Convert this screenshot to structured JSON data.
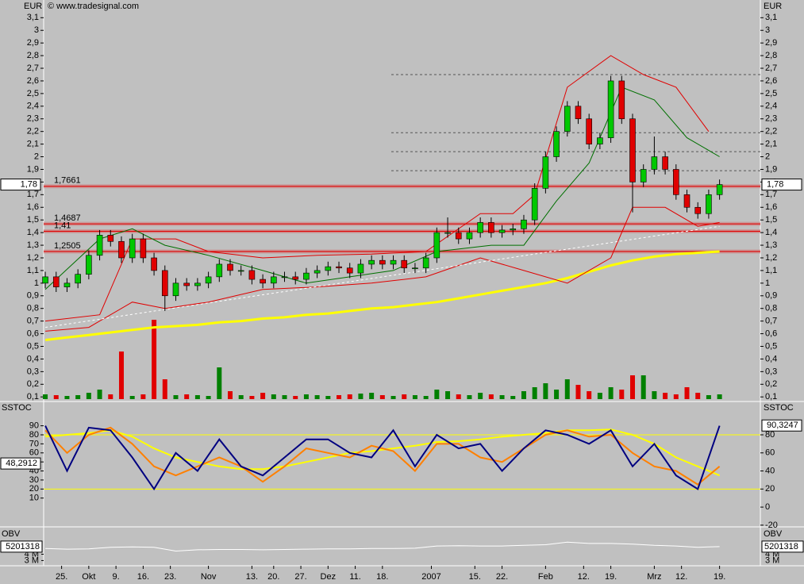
{
  "chart_data": {
    "type": "candlestick",
    "copyright": "© www.tradesignal.com",
    "xlim": [
      -0.3,
      131.5
    ],
    "xticks": [
      {
        "value": 3,
        "label": "25."
      },
      {
        "value": 8,
        "label": "Okt"
      },
      {
        "value": 13,
        "label": "9."
      },
      {
        "value": 18,
        "label": "16."
      },
      {
        "value": 23,
        "label": "23."
      },
      {
        "value": 30,
        "label": "Nov"
      },
      {
        "value": 38,
        "label": "13."
      },
      {
        "value": 42,
        "label": "20."
      },
      {
        "value": 47,
        "label": "27."
      },
      {
        "value": 52,
        "label": "Dez"
      },
      {
        "value": 57,
        "label": "11."
      },
      {
        "value": 62,
        "label": "18."
      },
      {
        "value": 71,
        "label": "2007"
      },
      {
        "value": 79,
        "label": "15."
      },
      {
        "value": 84,
        "label": "22."
      },
      {
        "value": 92,
        "label": "Feb"
      },
      {
        "value": 99,
        "label": "12."
      },
      {
        "value": 104,
        "label": "19."
      },
      {
        "value": 112,
        "label": "Mrz"
      },
      {
        "value": 117,
        "label": "12."
      },
      {
        "value": 124,
        "label": "19."
      }
    ],
    "price_panel": {
      "axis_label": "EUR",
      "ylim": [
        0.07,
        3.24
      ],
      "yticks": [
        {
          "value": 0.1,
          "label": "0,1"
        },
        {
          "value": 0.2,
          "label": "0,2"
        },
        {
          "value": 0.3,
          "label": "0,3"
        },
        {
          "value": 0.4,
          "label": "0,4"
        },
        {
          "value": 0.5,
          "label": "0,5"
        },
        {
          "value": 0.6,
          "label": "0,6"
        },
        {
          "value": 0.7,
          "label": "0,7"
        },
        {
          "value": 0.8,
          "label": "0,8"
        },
        {
          "value": 0.9,
          "label": "0,9"
        },
        1,
        {
          "value": 1.1,
          "label": "1,1"
        },
        {
          "value": 1.2,
          "label": "1,2"
        },
        {
          "value": 1.3,
          "label": "1,3"
        },
        {
          "value": 1.4,
          "label": "1,4"
        },
        {
          "value": 1.5,
          "label": "1,5"
        },
        {
          "value": 1.6,
          "label": "1,6"
        },
        {
          "value": 1.7,
          "label": "1,7"
        },
        {
          "value": 1.8,
          "label": "1,8"
        },
        {
          "value": 1.9,
          "label": "1,9"
        },
        2,
        {
          "value": 2.1,
          "label": "2,1"
        },
        {
          "value": 2.2,
          "label": "2,2"
        },
        {
          "value": 2.3,
          "label": "2,3"
        },
        {
          "value": 2.4,
          "label": "2,4"
        },
        {
          "value": 2.5,
          "label": "2,5"
        },
        {
          "value": 2.6,
          "label": "2,6"
        },
        {
          "value": 2.7,
          "label": "2,7"
        },
        {
          "value": 2.8,
          "label": "2,8"
        },
        {
          "value": 2.9,
          "label": "2,9"
        },
        3,
        {
          "value": 3.1,
          "label": "3,1"
        }
      ],
      "up_color": "#00c800",
      "down_color": "#e00000",
      "x": [
        0,
        2,
        4,
        6,
        8,
        10,
        12,
        14,
        16,
        18,
        20,
        22,
        24,
        26,
        28,
        30,
        32,
        34,
        36,
        38,
        40,
        42,
        44,
        46,
        48,
        50,
        52,
        54,
        56,
        58,
        60,
        62,
        64,
        66,
        68,
        70,
        72,
        74,
        76,
        78,
        80,
        82,
        84,
        86,
        88,
        90,
        92,
        94,
        96,
        98,
        100,
        102,
        104,
        106,
        108,
        110,
        112,
        114,
        116,
        118,
        120,
        122,
        124
      ],
      "open": [
        1.0,
        1.05,
        0.97,
        1.0,
        1.07,
        1.22,
        1.38,
        1.33,
        1.2,
        1.35,
        1.2,
        1.1,
        0.9,
        1.0,
        0.98,
        1.0,
        1.05,
        1.15,
        1.1,
        1.1,
        1.03,
        1.0,
        1.05,
        1.05,
        1.03,
        1.08,
        1.1,
        1.13,
        1.12,
        1.08,
        1.15,
        1.18,
        1.15,
        1.18,
        1.12,
        1.12,
        1.2,
        1.4,
        1.4,
        1.35,
        1.4,
        1.48,
        1.4,
        1.42,
        1.43,
        1.5,
        1.75,
        2.0,
        2.2,
        2.4,
        2.3,
        2.1,
        2.15,
        2.6,
        2.3,
        1.8,
        1.9,
        2.0,
        1.9,
        1.7,
        1.6,
        1.55,
        1.7
      ],
      "high": [
        1.09,
        1.09,
        1.04,
        1.11,
        1.26,
        1.42,
        1.42,
        1.37,
        1.39,
        1.39,
        1.24,
        1.14,
        1.04,
        1.04,
        1.04,
        1.09,
        1.19,
        1.19,
        1.14,
        1.14,
        1.07,
        1.09,
        1.09,
        1.09,
        1.12,
        1.14,
        1.17,
        1.17,
        1.16,
        1.19,
        1.22,
        1.22,
        1.22,
        1.22,
        1.16,
        1.24,
        1.44,
        1.52,
        1.44,
        1.44,
        1.52,
        1.52,
        1.46,
        1.47,
        1.54,
        1.79,
        2.04,
        2.24,
        2.44,
        2.44,
        2.34,
        2.19,
        2.64,
        2.64,
        2.34,
        1.94,
        2.16,
        2.04,
        1.94,
        1.74,
        1.64,
        1.74,
        1.82
      ],
      "low": [
        0.96,
        0.93,
        0.93,
        0.96,
        1.03,
        1.18,
        1.29,
        1.16,
        1.16,
        1.16,
        1.06,
        0.78,
        0.86,
        0.94,
        0.94,
        0.96,
        1.01,
        1.06,
        1.06,
        0.99,
        0.96,
        0.96,
        1.01,
        0.99,
        0.99,
        1.04,
        1.06,
        1.08,
        1.04,
        1.04,
        1.11,
        1.11,
        1.11,
        1.08,
        1.08,
        1.08,
        1.16,
        1.36,
        1.31,
        1.31,
        1.36,
        1.36,
        1.36,
        1.38,
        1.39,
        1.46,
        1.71,
        1.96,
        2.16,
        2.26,
        2.06,
        2.06,
        2.11,
        2.26,
        1.56,
        1.76,
        1.86,
        1.86,
        1.66,
        1.56,
        1.51,
        1.51,
        1.66
      ],
      "close": [
        1.05,
        0.97,
        1.0,
        1.07,
        1.22,
        1.38,
        1.33,
        1.2,
        1.35,
        1.2,
        1.1,
        0.9,
        1.0,
        0.98,
        1.0,
        1.05,
        1.15,
        1.1,
        1.1,
        1.03,
        1.0,
        1.05,
        1.05,
        1.03,
        1.08,
        1.1,
        1.13,
        1.12,
        1.08,
        1.15,
        1.18,
        1.15,
        1.18,
        1.12,
        1.12,
        1.2,
        1.4,
        1.4,
        1.35,
        1.4,
        1.48,
        1.4,
        1.42,
        1.43,
        1.5,
        1.75,
        2.0,
        2.2,
        2.4,
        2.3,
        2.1,
        2.15,
        2.6,
        2.3,
        1.8,
        1.9,
        2.0,
        1.9,
        1.7,
        1.6,
        1.55,
        1.7,
        1.78
      ],
      "volume": [
        6,
        5,
        4,
        5,
        8,
        12,
        6,
        60,
        4,
        6,
        100,
        25,
        5,
        6,
        5,
        4,
        40,
        10,
        5,
        4,
        8,
        6,
        5,
        4,
        6,
        5,
        4,
        5,
        6,
        7,
        8,
        5,
        4,
        6,
        5,
        4,
        12,
        10,
        6,
        5,
        8,
        6,
        5,
        4,
        10,
        15,
        20,
        12,
        25,
        18,
        10,
        8,
        15,
        12,
        30,
        30,
        10,
        8,
        6,
        15,
        8,
        5,
        6
      ],
      "lines": [
        {
          "color": "#ffff00",
          "width": 3,
          "x": [
            0,
            4,
            8,
            12,
            16,
            20,
            24,
            28,
            32,
            36,
            40,
            44,
            48,
            52,
            56,
            60,
            64,
            68,
            72,
            76,
            80,
            84,
            88,
            92,
            96,
            100,
            104,
            108,
            112,
            116,
            120,
            124
          ],
          "values": [
            0.55,
            0.57,
            0.59,
            0.61,
            0.63,
            0.65,
            0.66,
            0.67,
            0.69,
            0.7,
            0.72,
            0.73,
            0.75,
            0.76,
            0.78,
            0.8,
            0.81,
            0.83,
            0.85,
            0.88,
            0.91,
            0.94,
            0.97,
            1.0,
            1.04,
            1.09,
            1.14,
            1.18,
            1.21,
            1.23,
            1.24,
            1.25
          ]
        },
        {
          "color": "#e00000",
          "width": 1,
          "x": [
            0,
            10,
            16,
            24,
            30,
            40,
            50,
            60,
            70,
            80,
            86,
            90,
            96,
            104,
            110,
            116,
            122
          ],
          "values": [
            0.7,
            0.75,
            1.35,
            1.35,
            1.25,
            1.2,
            1.22,
            1.23,
            1.25,
            1.55,
            1.55,
            1.7,
            2.55,
            2.8,
            2.65,
            2.55,
            2.2
          ]
        },
        {
          "color": "#e00000",
          "width": 1,
          "x": [
            0,
            8,
            16,
            22,
            30,
            40,
            50,
            60,
            70,
            80,
            88,
            96,
            104,
            108,
            114,
            120,
            124
          ],
          "values": [
            0.62,
            0.65,
            0.85,
            0.8,
            0.85,
            0.95,
            0.97,
            1.0,
            1.05,
            1.2,
            1.1,
            1.0,
            1.2,
            1.6,
            1.6,
            1.45,
            1.48
          ]
        },
        {
          "color": "#007000",
          "width": 1,
          "x": [
            0,
            10,
            16,
            22,
            30,
            40,
            48,
            56,
            64,
            72,
            82,
            88,
            94,
            100,
            106,
            112,
            118,
            124
          ],
          "values": [
            0.95,
            1.35,
            1.43,
            1.3,
            1.22,
            1.1,
            1.0,
            1.05,
            1.1,
            1.25,
            1.3,
            1.3,
            1.65,
            1.95,
            2.55,
            2.45,
            2.15,
            2.0
          ]
        },
        {
          "color": "#ffffff",
          "width": 1,
          "dash": true,
          "x": [
            0,
            124
          ],
          "values": [
            0.65,
            1.45
          ]
        }
      ],
      "levels": [
        {
          "value": 1.7661,
          "label": "1,7661"
        },
        {
          "value": 1.4687,
          "label": "1,4687"
        },
        {
          "value": 1.41,
          "label": "1,41"
        },
        {
          "value": 1.2505,
          "label": "1,2505"
        }
      ],
      "dashed_levels": [
        2.65,
        2.19,
        2.04,
        1.89
      ],
      "last": {
        "value": 1.78,
        "label": "1,78"
      }
    },
    "stoch_panel": {
      "axis_label": "SSTOC",
      "ylim": [
        -21,
        116
      ],
      "yticks": [
        90,
        80,
        70,
        60,
        50,
        40,
        30,
        20,
        10
      ],
      "y2ticks": [
        80,
        60,
        40,
        20,
        0,
        -20
      ],
      "levels": [
        80,
        20
      ],
      "x": [
        0,
        4,
        8,
        12,
        16,
        20,
        24,
        28,
        32,
        36,
        40,
        44,
        48,
        52,
        56,
        60,
        64,
        68,
        72,
        76,
        80,
        84,
        88,
        92,
        96,
        100,
        104,
        108,
        112,
        116,
        120,
        124
      ],
      "series": [
        {
          "color": "#ffff00",
          "values": [
            78,
            80,
            82,
            85,
            78,
            65,
            55,
            50,
            45,
            42,
            42,
            45,
            50,
            55,
            60,
            62,
            65,
            68,
            72,
            73,
            75,
            78,
            80,
            82,
            85,
            85,
            86,
            80,
            70,
            55,
            45,
            35
          ]
        },
        {
          "color": "#ff8000",
          "values": [
            85,
            60,
            80,
            88,
            70,
            45,
            35,
            45,
            55,
            45,
            28,
            45,
            65,
            60,
            55,
            68,
            62,
            40,
            70,
            70,
            55,
            50,
            65,
            80,
            85,
            78,
            80,
            60,
            45,
            40,
            25,
            45
          ]
        },
        {
          "color": "#000080",
          "values": [
            90,
            40,
            88,
            85,
            55,
            20,
            60,
            40,
            75,
            45,
            35,
            55,
            75,
            75,
            60,
            55,
            85,
            45,
            80,
            65,
            70,
            40,
            65,
            85,
            80,
            70,
            85,
            45,
            70,
            35,
            20,
            90
          ]
        }
      ],
      "left_value": {
        "value": 48.2912,
        "label": "48,2912"
      },
      "right_value": {
        "value": 90.3247,
        "label": "90,3247"
      }
    },
    "obv_panel": {
      "axis_label": "OBV",
      "ylim": [
        2300000,
        8200000
      ],
      "yticks": [
        {
          "value": 4000000,
          "label": "4 M"
        },
        {
          "value": 3000000,
          "label": "3 M"
        }
      ],
      "x": [
        0,
        4,
        8,
        12,
        16,
        20,
        24,
        28,
        32,
        36,
        40,
        44,
        48,
        52,
        56,
        60,
        64,
        68,
        72,
        76,
        80,
        84,
        88,
        92,
        96,
        100,
        104,
        108,
        112,
        116,
        120,
        124
      ],
      "values": [
        4900000,
        4800000,
        4850000,
        5100000,
        5150000,
        5100000,
        4500000,
        4700000,
        4750000,
        4750000,
        4700000,
        4750000,
        4800000,
        4850000,
        4850000,
        4900000,
        4900000,
        4950000,
        5300000,
        5350000,
        5300000,
        5300000,
        5400000,
        5500000,
        5900000,
        5700000,
        5700000,
        5600000,
        5400000,
        5300000,
        5100000,
        5201318
      ],
      "color": "#ffffff",
      "last": 5201318
    }
  }
}
